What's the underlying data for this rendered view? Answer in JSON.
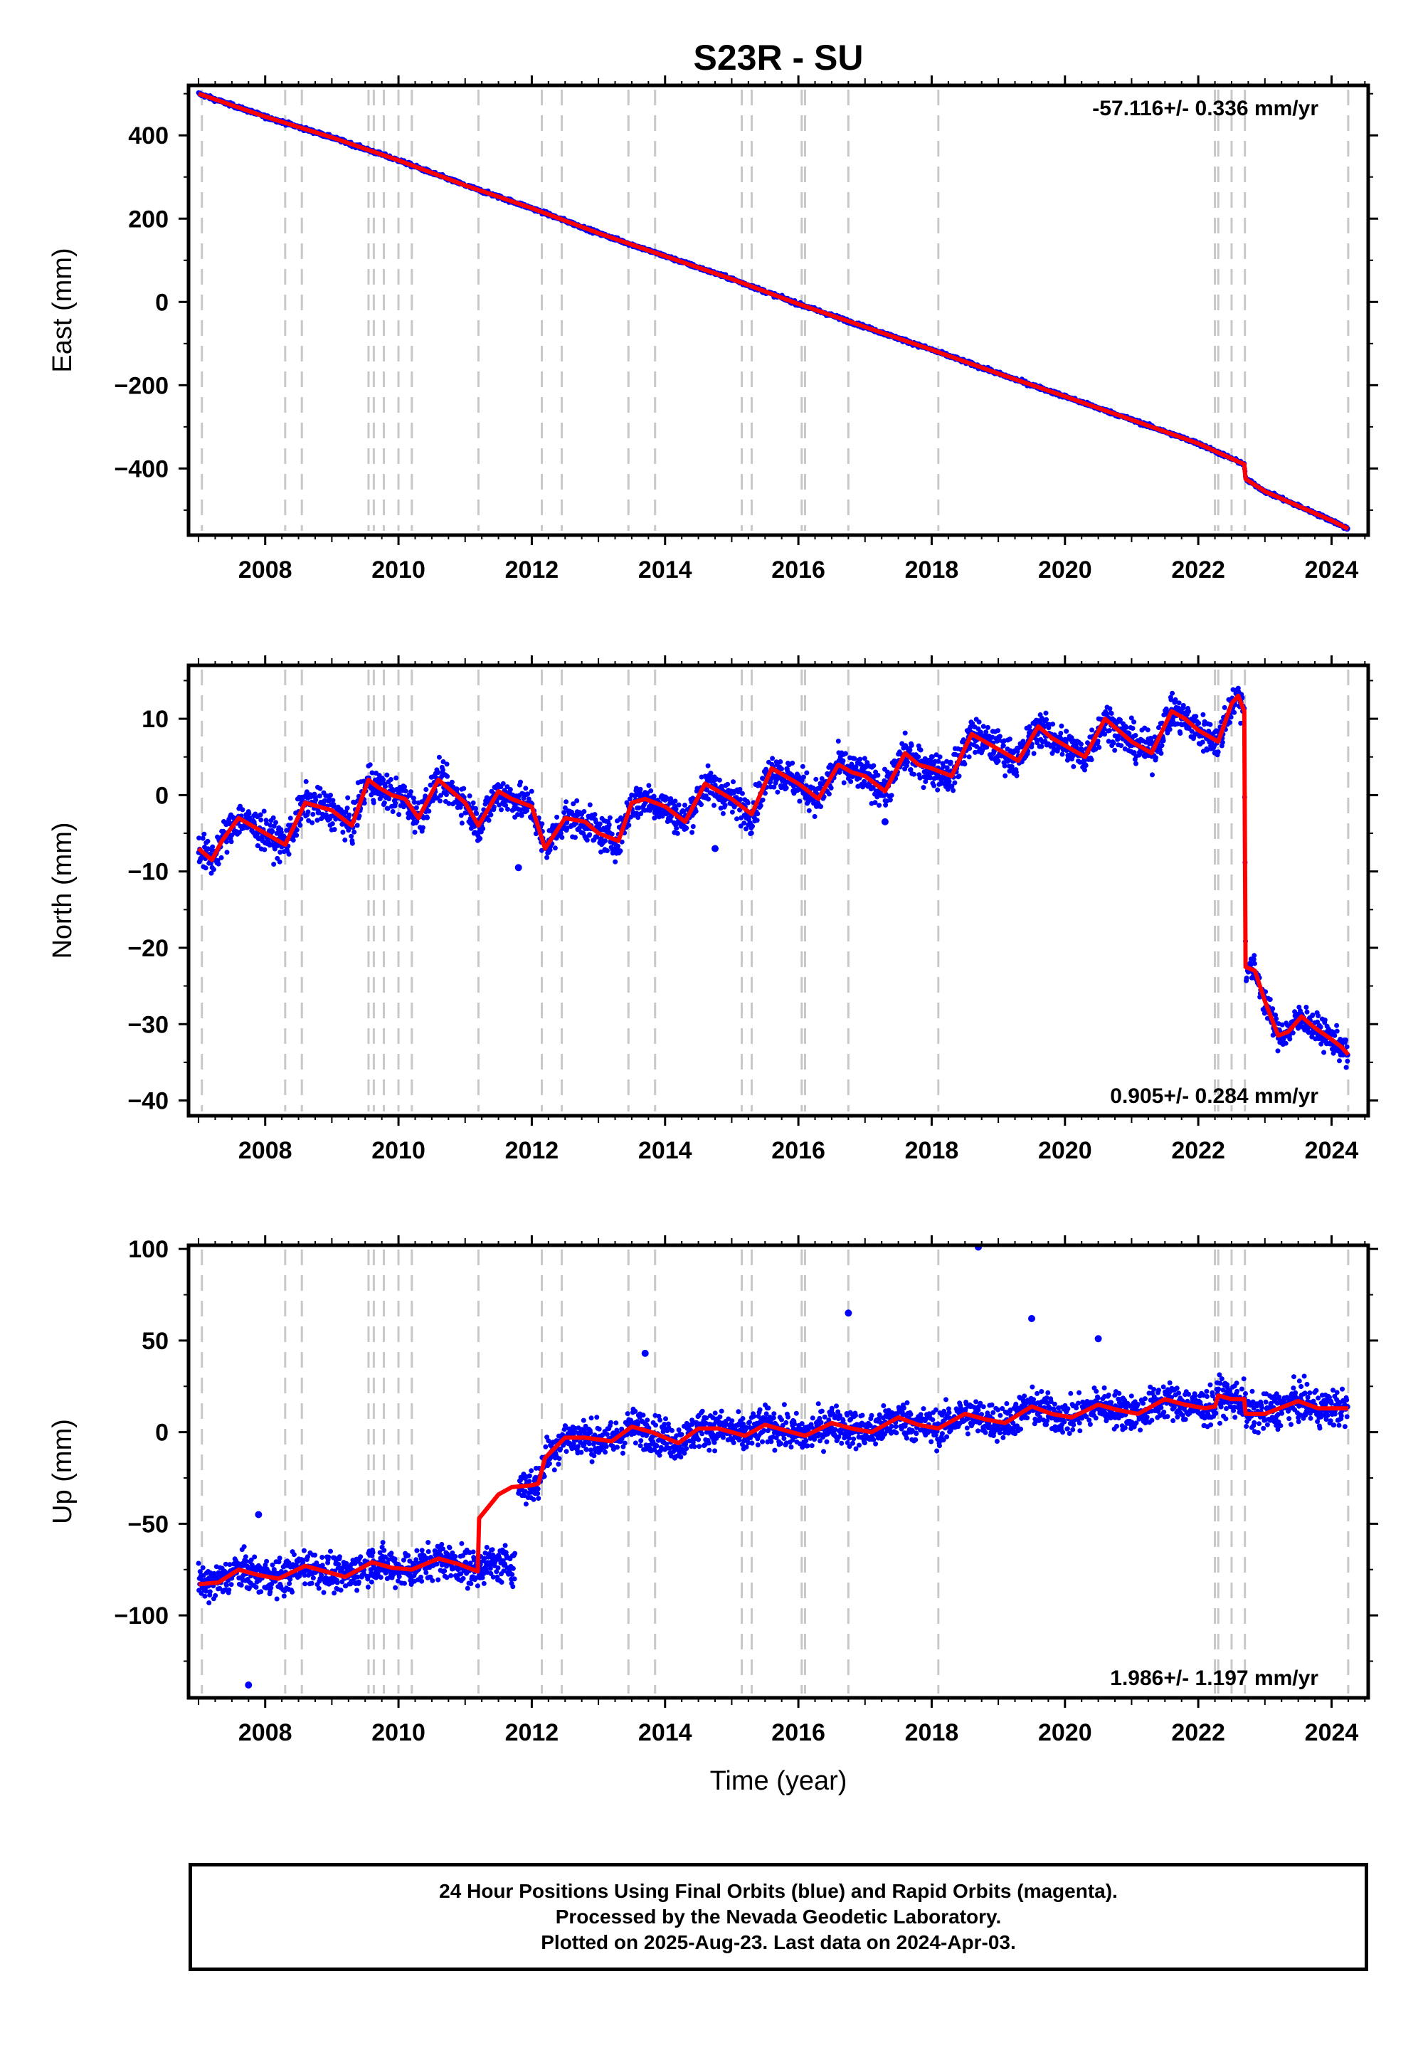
{
  "title": "S23R - SU",
  "xlabel": "Time (year)",
  "x_ticks": [
    2008,
    2010,
    2012,
    2014,
    2016,
    2018,
    2020,
    2022,
    2024
  ],
  "xlim": [
    2006.85,
    2024.55
  ],
  "event_lines": [
    2007.05,
    2008.3,
    2008.55,
    2009.55,
    2009.63,
    2009.78,
    2010.0,
    2010.2,
    2011.2,
    2012.15,
    2012.45,
    2013.45,
    2013.85,
    2015.15,
    2015.3,
    2016.05,
    2016.1,
    2016.75,
    2018.1,
    2022.25,
    2022.3,
    2022.5,
    2022.7,
    2024.25
  ],
  "colors": {
    "points": "#0000ff",
    "model": "#ff0000",
    "event_lines": "#c8c8c8",
    "frame": "#000000"
  },
  "footer": [
    "24 Hour Positions Using Final Orbits (blue) and Rapid Orbits (magenta).",
    "Processed by the Nevada Geodetic Laboratory.",
    "Plotted on 2025-Aug-23. Last data on 2024-Apr-03."
  ],
  "chart_data": [
    {
      "type": "scatter",
      "component": "east",
      "ylabel": "East (mm)",
      "rate_label": "-57.116+/- 0.336 mm/yr",
      "rate_position": "top-right",
      "ylim": [
        -560,
        520
      ],
      "y_ticks": [
        -400,
        -200,
        0,
        200,
        400
      ],
      "series": [
        {
          "kind": "points",
          "x_start": 2007.0,
          "x_end": 2024.25
        },
        {
          "kind": "model",
          "x": [
            2007.0,
            2008.0,
            2009.0,
            2010.0,
            2011.0,
            2012.0,
            2013.0,
            2014.0,
            2015.0,
            2016.0,
            2017.0,
            2018.0,
            2019.0,
            2020.0,
            2021.0,
            2022.0,
            2022.69,
            2022.71,
            2023.0,
            2024.0,
            2024.25
          ],
          "y": [
            500,
            445,
            395,
            340,
            280,
            225,
            165,
            110,
            55,
            -5,
            -60,
            -115,
            -172,
            -227,
            -283,
            -340,
            -390,
            -425,
            -455,
            -525,
            -545
          ]
        }
      ]
    },
    {
      "type": "scatter",
      "component": "north",
      "ylabel": "North (mm)",
      "rate_label": "0.905+/- 0.284 mm/yr",
      "rate_position": "bottom-right",
      "ylim": [
        -42,
        17
      ],
      "y_ticks": [
        -40,
        -30,
        -20,
        -10,
        0,
        10
      ],
      "series": [
        {
          "kind": "points",
          "x_start": 2007.0,
          "x_end": 2024.25
        },
        {
          "kind": "model",
          "x": [
            2007.0,
            2007.2,
            2007.35,
            2007.6,
            2007.8,
            2008.0,
            2008.3,
            2008.6,
            2008.8,
            2009.0,
            2009.3,
            2009.55,
            2009.7,
            2009.9,
            2010.1,
            2010.3,
            2010.6,
            2010.8,
            2011.0,
            2011.2,
            2011.5,
            2011.7,
            2012.0,
            2012.2,
            2012.5,
            2012.8,
            2013.0,
            2013.3,
            2013.5,
            2013.7,
            2014.0,
            2014.3,
            2014.6,
            2014.8,
            2015.0,
            2015.3,
            2015.6,
            2015.8,
            2016.0,
            2016.3,
            2016.6,
            2016.8,
            2017.0,
            2017.3,
            2017.6,
            2017.8,
            2018.0,
            2018.3,
            2018.6,
            2018.8,
            2019.0,
            2019.3,
            2019.6,
            2019.8,
            2020.0,
            2020.3,
            2020.6,
            2020.8,
            2021.0,
            2021.3,
            2021.6,
            2021.8,
            2022.0,
            2022.3,
            2022.5,
            2022.6,
            2022.69,
            2022.71,
            2022.85,
            2023.0,
            2023.2,
            2023.35,
            2023.55,
            2023.75,
            2024.0,
            2024.15,
            2024.25
          ],
          "y": [
            -7,
            -8.5,
            -6,
            -3,
            -4,
            -5,
            -6.5,
            -1,
            -1.5,
            -2,
            -4,
            2,
            1,
            0,
            -0.5,
            -3,
            2,
            0.5,
            -1,
            -4,
            0.5,
            -0.5,
            -1.5,
            -7,
            -3,
            -3.5,
            -5,
            -6,
            -1,
            -0.5,
            -1.5,
            -3.5,
            1.5,
            0.5,
            -0.5,
            -2.5,
            3.5,
            2.5,
            1.5,
            -0.5,
            4,
            3,
            2.5,
            0.5,
            5.5,
            4,
            3.5,
            2.5,
            8,
            7,
            6,
            4.5,
            9,
            7.5,
            6.5,
            5,
            10,
            8.5,
            7,
            5.5,
            11,
            10,
            8.5,
            7,
            12,
            13,
            11,
            -22.5,
            -23,
            -27,
            -31.5,
            -31,
            -29,
            -30.5,
            -32,
            -33,
            -34
          ]
        }
      ]
    },
    {
      "type": "scatter",
      "component": "up",
      "ylabel": "Up (mm)",
      "rate_label": "1.986+/- 1.197 mm/yr",
      "rate_position": "bottom-right",
      "ylim": [
        -145,
        102
      ],
      "y_ticks": [
        -100,
        -50,
        0,
        50,
        100
      ],
      "series": [
        {
          "kind": "points",
          "x_start": 2007.0,
          "x_end": 2024.25,
          "gap": [
            2011.75,
            2011.8
          ]
        },
        {
          "kind": "model",
          "x": [
            2007.0,
            2007.3,
            2007.6,
            2007.9,
            2008.2,
            2008.6,
            2008.9,
            2009.2,
            2009.6,
            2009.9,
            2010.2,
            2010.6,
            2010.9,
            2011.19,
            2011.21,
            2011.5,
            2011.7,
            2012.0,
            2012.1,
            2012.2,
            2012.5,
            2012.8,
            2013.2,
            2013.5,
            2013.8,
            2014.2,
            2014.5,
            2014.8,
            2015.2,
            2015.5,
            2015.8,
            2016.1,
            2016.5,
            2016.8,
            2017.1,
            2017.5,
            2017.8,
            2018.1,
            2018.5,
            2018.8,
            2019.1,
            2019.5,
            2019.8,
            2020.1,
            2020.5,
            2020.8,
            2021.1,
            2021.5,
            2021.8,
            2022.1,
            2022.25,
            2022.3,
            2022.5,
            2022.69,
            2022.71,
            2023.0,
            2023.5,
            2023.8,
            2024.25
          ],
          "y": [
            -83,
            -82,
            -75,
            -78,
            -80,
            -73,
            -76,
            -79,
            -71,
            -74,
            -75,
            -69,
            -72,
            -76,
            -47,
            -34,
            -30,
            -29,
            -28,
            -14,
            -3,
            -3,
            -5,
            3,
            0,
            -6,
            2,
            2,
            -2,
            4,
            1,
            -2,
            5,
            2,
            0,
            8,
            4,
            2,
            10,
            7,
            5,
            14,
            10,
            8,
            15,
            12,
            10,
            18,
            15,
            13,
            14,
            20,
            18,
            18,
            10,
            10,
            17,
            13,
            13
          ]
        }
      ]
    }
  ]
}
